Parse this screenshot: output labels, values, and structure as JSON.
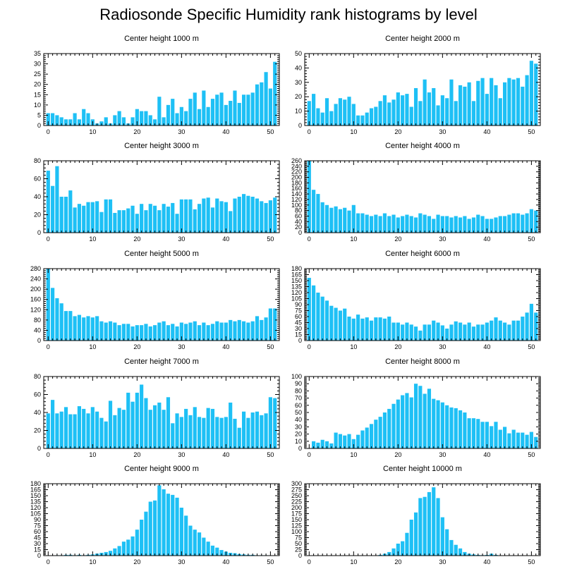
{
  "title": "Radiosonde Specific Humidity rank histograms by level",
  "colors": {
    "bar": "#1ec0f5",
    "frame": "#000000"
  },
  "chart_data": [
    {
      "type": "bar",
      "title": "Center height 1000 m",
      "xlim": [
        -1,
        52
      ],
      "xticks": [
        0,
        10,
        20,
        30,
        40,
        50
      ],
      "ylim": [
        0,
        35
      ],
      "yticks": [
        0,
        5,
        10,
        15,
        20,
        25,
        30,
        35
      ],
      "x": [
        0,
        1,
        2,
        3,
        4,
        5,
        6,
        7,
        8,
        9,
        10,
        11,
        12,
        13,
        14,
        15,
        16,
        17,
        18,
        19,
        20,
        21,
        22,
        23,
        24,
        25,
        26,
        27,
        28,
        29,
        30,
        31,
        32,
        33,
        34,
        35,
        36,
        37,
        38,
        39,
        40,
        41,
        42,
        43,
        44,
        45,
        46,
        47,
        48,
        49,
        50,
        51
      ],
      "values": [
        6,
        6,
        5,
        4,
        3,
        3,
        6,
        3,
        8,
        6,
        3,
        1,
        2,
        4,
        1,
        5,
        7,
        4,
        1,
        4,
        8,
        7,
        7,
        5,
        3,
        14,
        4,
        10,
        13,
        6,
        9,
        7,
        13,
        16,
        8,
        17,
        9,
        13,
        15,
        16,
        10,
        12,
        17,
        11,
        15,
        15,
        16,
        20,
        21,
        26,
        18,
        31
      ]
    },
    {
      "type": "bar",
      "title": "Center height 2000 m",
      "xlim": [
        -1,
        52
      ],
      "xticks": [
        0,
        10,
        20,
        30,
        40,
        50
      ],
      "ylim": [
        0,
        50
      ],
      "yticks": [
        0,
        10,
        20,
        30,
        40,
        50
      ],
      "x": [
        0,
        1,
        2,
        3,
        4,
        5,
        6,
        7,
        8,
        9,
        10,
        11,
        12,
        13,
        14,
        15,
        16,
        17,
        18,
        19,
        20,
        21,
        22,
        23,
        24,
        25,
        26,
        27,
        28,
        29,
        30,
        31,
        32,
        33,
        34,
        35,
        36,
        37,
        38,
        39,
        40,
        41,
        42,
        43,
        44,
        45,
        46,
        47,
        48,
        49,
        50,
        51
      ],
      "values": [
        17,
        22,
        12,
        9,
        19,
        10,
        15,
        19,
        18,
        20,
        15,
        7,
        7,
        9,
        12,
        13,
        17,
        21,
        16,
        18,
        23,
        21,
        22,
        13,
        26,
        17,
        32,
        23,
        26,
        14,
        21,
        19,
        32,
        17,
        28,
        27,
        30,
        17,
        31,
        33,
        22,
        33,
        28,
        19,
        30,
        33,
        32,
        33,
        27,
        35,
        45,
        43
      ]
    },
    {
      "type": "bar",
      "title": "Center height 3000 m",
      "xlim": [
        -1,
        52
      ],
      "xticks": [
        0,
        10,
        20,
        30,
        40,
        50
      ],
      "ylim": [
        0,
        80
      ],
      "yticks": [
        0,
        20,
        40,
        60,
        80
      ],
      "x": [
        0,
        1,
        2,
        3,
        4,
        5,
        6,
        7,
        8,
        9,
        10,
        11,
        12,
        13,
        14,
        15,
        16,
        17,
        18,
        19,
        20,
        21,
        22,
        23,
        24,
        25,
        26,
        27,
        28,
        29,
        30,
        31,
        32,
        33,
        34,
        35,
        36,
        37,
        38,
        39,
        40,
        41,
        42,
        43,
        44,
        45,
        46,
        47,
        48,
        49,
        50,
        51
      ],
      "values": [
        69,
        52,
        74,
        40,
        40,
        47,
        28,
        32,
        30,
        34,
        34,
        35,
        23,
        37,
        37,
        22,
        25,
        25,
        27,
        30,
        21,
        32,
        25,
        32,
        30,
        25,
        32,
        29,
        33,
        21,
        37,
        37,
        37,
        26,
        32,
        38,
        39,
        28,
        38,
        35,
        34,
        24,
        38,
        40,
        43,
        41,
        40,
        38,
        35,
        33,
        36,
        39
      ]
    },
    {
      "type": "bar",
      "title": "Center height 4000 m",
      "xlim": [
        -1,
        52
      ],
      "xticks": [
        0,
        10,
        20,
        30,
        40,
        50
      ],
      "ylim": [
        0,
        260
      ],
      "yticks": [
        0,
        20,
        40,
        60,
        80,
        100,
        120,
        140,
        160,
        180,
        200,
        220,
        240,
        260
      ],
      "x": [
        0,
        1,
        2,
        3,
        4,
        5,
        6,
        7,
        8,
        9,
        10,
        11,
        12,
        13,
        14,
        15,
        16,
        17,
        18,
        19,
        20,
        21,
        22,
        23,
        24,
        25,
        26,
        27,
        28,
        29,
        30,
        31,
        32,
        33,
        34,
        35,
        36,
        37,
        38,
        39,
        40,
        41,
        42,
        43,
        44,
        45,
        46,
        47,
        48,
        49,
        50,
        51
      ],
      "values": [
        260,
        155,
        140,
        110,
        100,
        90,
        95,
        85,
        90,
        80,
        100,
        70,
        70,
        65,
        60,
        65,
        60,
        70,
        60,
        65,
        55,
        60,
        65,
        60,
        55,
        70,
        65,
        60,
        50,
        65,
        60,
        60,
        55,
        60,
        55,
        60,
        50,
        55,
        65,
        60,
        50,
        50,
        55,
        60,
        60,
        65,
        70,
        70,
        65,
        70,
        85,
        80
      ]
    },
    {
      "type": "bar",
      "title": "Center height 5000 m",
      "xlim": [
        -1,
        52
      ],
      "xticks": [
        0,
        10,
        20,
        30,
        40,
        50
      ],
      "ylim": [
        0,
        280
      ],
      "yticks": [
        0,
        40,
        80,
        120,
        160,
        200,
        240,
        280
      ],
      "x": [
        0,
        1,
        2,
        3,
        4,
        5,
        6,
        7,
        8,
        9,
        10,
        11,
        12,
        13,
        14,
        15,
        16,
        17,
        18,
        19,
        20,
        21,
        22,
        23,
        24,
        25,
        26,
        27,
        28,
        29,
        30,
        31,
        32,
        33,
        34,
        35,
        36,
        37,
        38,
        39,
        40,
        41,
        42,
        43,
        44,
        45,
        46,
        47,
        48,
        49,
        50,
        51
      ],
      "values": [
        280,
        205,
        165,
        145,
        115,
        115,
        95,
        100,
        90,
        95,
        90,
        95,
        75,
        70,
        75,
        70,
        60,
        65,
        65,
        55,
        60,
        60,
        65,
        55,
        60,
        70,
        75,
        60,
        65,
        55,
        70,
        65,
        70,
        75,
        60,
        70,
        60,
        65,
        75,
        70,
        70,
        80,
        75,
        80,
        75,
        70,
        75,
        95,
        80,
        90,
        125,
        125
      ]
    },
    {
      "type": "bar",
      "title": "Center height 6000 m",
      "xlim": [
        -1,
        52
      ],
      "xticks": [
        0,
        10,
        20,
        30,
        40,
        50
      ],
      "ylim": [
        0,
        180
      ],
      "yticks": [
        0,
        15,
        30,
        45,
        60,
        75,
        90,
        105,
        120,
        135,
        150,
        165,
        180
      ],
      "x": [
        0,
        1,
        2,
        3,
        4,
        5,
        6,
        7,
        8,
        9,
        10,
        11,
        12,
        13,
        14,
        15,
        16,
        17,
        18,
        19,
        20,
        21,
        22,
        23,
        24,
        25,
        26,
        27,
        28,
        29,
        30,
        31,
        32,
        33,
        34,
        35,
        36,
        37,
        38,
        39,
        40,
        41,
        42,
        43,
        44,
        45,
        46,
        47,
        48,
        49,
        50,
        51
      ],
      "values": [
        157,
        138,
        120,
        110,
        100,
        87,
        82,
        75,
        80,
        60,
        55,
        65,
        55,
        58,
        50,
        58,
        58,
        55,
        60,
        45,
        45,
        40,
        45,
        40,
        35,
        25,
        40,
        40,
        50,
        45,
        38,
        30,
        40,
        48,
        45,
        40,
        45,
        35,
        40,
        40,
        45,
        50,
        58,
        50,
        45,
        40,
        50,
        50,
        60,
        70,
        92,
        70
      ]
    },
    {
      "type": "bar",
      "title": "Center height 7000 m",
      "xlim": [
        -1,
        52
      ],
      "xticks": [
        0,
        10,
        20,
        30,
        40,
        50
      ],
      "ylim": [
        0,
        80
      ],
      "yticks": [
        0,
        20,
        40,
        60,
        80
      ],
      "x": [
        0,
        1,
        2,
        3,
        4,
        5,
        6,
        7,
        8,
        9,
        10,
        11,
        12,
        13,
        14,
        15,
        16,
        17,
        18,
        19,
        20,
        21,
        22,
        23,
        24,
        25,
        26,
        27,
        28,
        29,
        30,
        31,
        32,
        33,
        34,
        35,
        36,
        37,
        38,
        39,
        40,
        41,
        42,
        43,
        44,
        45,
        46,
        47,
        48,
        49,
        50,
        51
      ],
      "values": [
        39,
        54,
        39,
        41,
        46,
        38,
        38,
        47,
        44,
        39,
        46,
        41,
        34,
        30,
        53,
        37,
        45,
        43,
        62,
        52,
        62,
        71,
        56,
        43,
        48,
        51,
        43,
        57,
        28,
        39,
        35,
        44,
        37,
        46,
        35,
        34,
        45,
        44,
        35,
        34,
        35,
        51,
        33,
        23,
        41,
        34,
        40,
        41,
        37,
        39,
        57,
        56
      ]
    },
    {
      "type": "bar",
      "title": "Center height 8000 m",
      "xlim": [
        -1,
        52
      ],
      "xticks": [
        0,
        10,
        20,
        30,
        40,
        50
      ],
      "ylim": [
        0,
        100
      ],
      "yticks": [
        0,
        10,
        20,
        30,
        40,
        50,
        60,
        70,
        80,
        90,
        100
      ],
      "x": [
        0,
        1,
        2,
        3,
        4,
        5,
        6,
        7,
        8,
        9,
        10,
        11,
        12,
        13,
        14,
        15,
        16,
        17,
        18,
        19,
        20,
        21,
        22,
        23,
        24,
        25,
        26,
        27,
        28,
        29,
        30,
        31,
        32,
        33,
        34,
        35,
        36,
        37,
        38,
        39,
        40,
        41,
        42,
        43,
        44,
        45,
        46,
        47,
        48,
        49,
        50,
        51
      ],
      "values": [
        0,
        10,
        8,
        12,
        10,
        7,
        22,
        20,
        18,
        20,
        13,
        19,
        25,
        29,
        34,
        40,
        44,
        50,
        55,
        62,
        68,
        74,
        77,
        71,
        90,
        87,
        76,
        83,
        69,
        67,
        64,
        60,
        57,
        56,
        53,
        50,
        42,
        42,
        41,
        37,
        37,
        31,
        37,
        26,
        30,
        21,
        26,
        22,
        22,
        19,
        23,
        16
      ]
    },
    {
      "type": "bar",
      "title": "Center height 9000 m",
      "xlim": [
        -1,
        52
      ],
      "xticks": [
        0,
        10,
        20,
        30,
        40,
        50
      ],
      "ylim": [
        0,
        180
      ],
      "yticks": [
        0,
        15,
        30,
        45,
        60,
        75,
        90,
        105,
        120,
        135,
        150,
        165,
        180
      ],
      "x": [
        0,
        1,
        2,
        3,
        4,
        5,
        6,
        7,
        8,
        9,
        10,
        11,
        12,
        13,
        14,
        15,
        16,
        17,
        18,
        19,
        20,
        21,
        22,
        23,
        24,
        25,
        26,
        27,
        28,
        29,
        30,
        31,
        32,
        33,
        34,
        35,
        36,
        37,
        38,
        39,
        40,
        41,
        42,
        43,
        44,
        45,
        46,
        47,
        48,
        49,
        50,
        51
      ],
      "values": [
        0,
        0,
        1,
        1,
        2,
        2,
        1,
        2,
        1,
        2,
        3,
        5,
        7,
        9,
        12,
        18,
        24,
        35,
        40,
        48,
        65,
        90,
        110,
        135,
        138,
        176,
        166,
        155,
        152,
        145,
        120,
        100,
        75,
        65,
        58,
        45,
        35,
        25,
        20,
        14,
        10,
        7,
        6,
        4,
        3,
        2,
        2,
        1,
        1,
        1,
        0,
        0
      ]
    },
    {
      "type": "bar",
      "title": "Center height 10000 m",
      "xlim": [
        -1,
        52
      ],
      "xticks": [
        0,
        10,
        20,
        30,
        40,
        50
      ],
      "ylim": [
        0,
        300
      ],
      "yticks": [
        0,
        25,
        50,
        75,
        100,
        125,
        150,
        175,
        200,
        225,
        250,
        275,
        300
      ],
      "x": [
        0,
        1,
        2,
        3,
        4,
        5,
        6,
        7,
        8,
        9,
        10,
        11,
        12,
        13,
        14,
        15,
        16,
        17,
        18,
        19,
        20,
        21,
        22,
        23,
        24,
        25,
        26,
        27,
        28,
        29,
        30,
        31,
        32,
        33,
        34,
        35,
        36,
        37,
        38,
        39,
        40,
        41,
        42,
        43,
        44,
        45,
        46,
        47,
        48,
        49,
        50,
        51
      ],
      "values": [
        0,
        0,
        0,
        0,
        0,
        0,
        0,
        0,
        0,
        0,
        0,
        0,
        0,
        0,
        0,
        0,
        3,
        8,
        15,
        30,
        50,
        60,
        95,
        150,
        180,
        240,
        245,
        265,
        285,
        240,
        160,
        110,
        65,
        45,
        30,
        15,
        8,
        5,
        3,
        2,
        3,
        8,
        3,
        1,
        1,
        0,
        0,
        0,
        0,
        0,
        0,
        0
      ]
    }
  ]
}
